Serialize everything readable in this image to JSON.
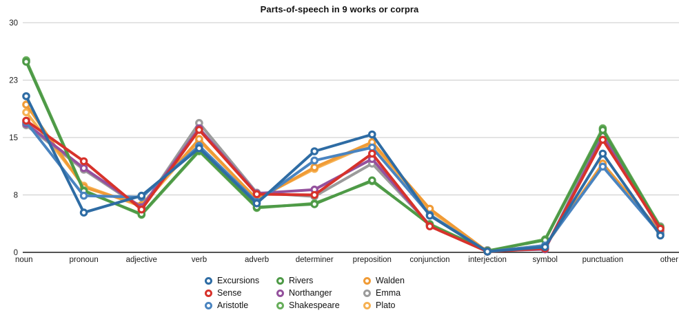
{
  "chart_data": {
    "type": "line",
    "title": "Parts-of-speech in 9 works or corpra",
    "xlabel": "",
    "ylabel": "",
    "ylim": [
      0,
      30
    ],
    "grid": true,
    "legend_position": "bottom",
    "y_ticks": [
      {
        "value": 0,
        "label": "0"
      },
      {
        "value": 7.5,
        "label": "8"
      },
      {
        "value": 15,
        "label": "15"
      },
      {
        "value": 22.5,
        "label": "23"
      },
      {
        "value": 30,
        "label": "30"
      }
    ],
    "categories": [
      "noun",
      "pronoun",
      "adjective",
      "verb",
      "adverb",
      "determiner",
      "preposition",
      "conjunction",
      "interjection",
      "symbol",
      "punctuation",
      "other"
    ],
    "series": [
      {
        "name": "Excursions",
        "color": "#2e6ca4",
        "values": [
          20.4,
          5.2,
          7.4,
          13.6,
          6.4,
          13.2,
          15.4,
          4.8,
          0.1,
          0.7,
          12.9,
          2.2
        ]
      },
      {
        "name": "Sense",
        "color": "#d7322b",
        "values": [
          17.2,
          11.9,
          5.6,
          16.0,
          7.6,
          7.5,
          12.9,
          3.4,
          0.1,
          0.5,
          14.7,
          3.1
        ]
      },
      {
        "name": "Aristotle",
        "color": "#4a84c0",
        "values": [
          17.0,
          7.4,
          7.2,
          13.9,
          6.6,
          12.0,
          13.7,
          4.9,
          0.1,
          0.9,
          11.2,
          2.4
        ]
      },
      {
        "name": "Rivers",
        "color": "#4e9a47",
        "values": [
          24.9,
          8.0,
          5.0,
          13.3,
          5.9,
          6.3,
          9.4,
          3.6,
          0.2,
          1.6,
          16.0,
          3.2
        ]
      },
      {
        "name": "Northanger",
        "color": "#94519d",
        "values": [
          16.8,
          11.0,
          5.9,
          16.2,
          7.7,
          8.2,
          12.2,
          3.5,
          0.2,
          0.4,
          15.2,
          2.9
        ]
      },
      {
        "name": "Shakespeare",
        "color": "#67ae5b",
        "values": [
          25.1,
          8.1,
          4.9,
          13.2,
          5.8,
          6.4,
          9.3,
          3.7,
          0.2,
          1.7,
          16.2,
          3.3
        ]
      },
      {
        "name": "Walden",
        "color": "#f09b36",
        "values": [
          19.3,
          8.5,
          6.2,
          14.8,
          6.9,
          11.1,
          14.4,
          5.7,
          0.1,
          0.8,
          11.6,
          2.7
        ]
      },
      {
        "name": "Emma",
        "color": "#9b9b9b",
        "values": [
          16.6,
          10.8,
          5.8,
          16.9,
          7.8,
          7.3,
          11.6,
          3.6,
          0.3,
          0.4,
          15.6,
          3.4
        ]
      },
      {
        "name": "Plato",
        "color": "#f6b152",
        "values": [
          18.3,
          8.7,
          6.0,
          14.6,
          7.0,
          10.9,
          14.2,
          5.5,
          0.1,
          0.9,
          11.4,
          2.6
        ]
      }
    ],
    "axis_color": "#1a1a1a",
    "gridline_color": "#c9c9c9",
    "label_color": "#1a1a1a"
  }
}
